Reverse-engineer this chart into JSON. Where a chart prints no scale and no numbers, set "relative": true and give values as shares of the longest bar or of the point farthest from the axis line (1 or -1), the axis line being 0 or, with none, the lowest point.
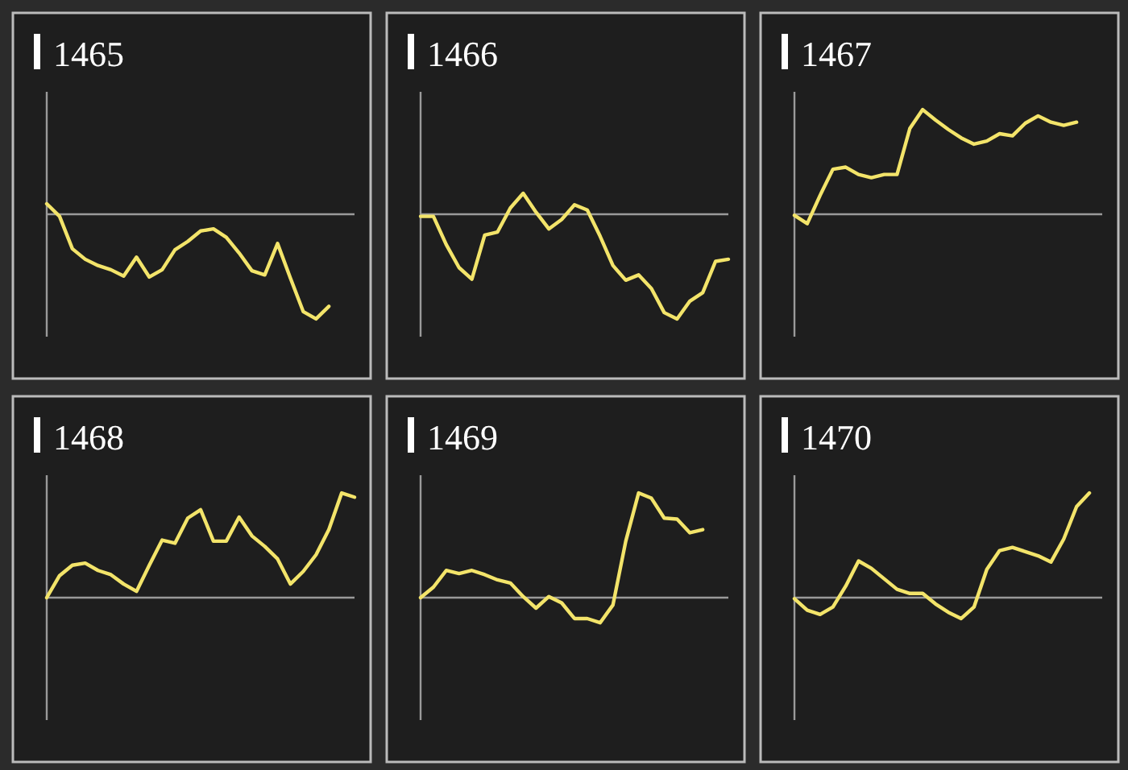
{
  "chart_data": [
    {
      "type": "line",
      "title": "1465",
      "relative": true,
      "categories": [
        null,
        null,
        null,
        null,
        null,
        null,
        null,
        null,
        null,
        null,
        null,
        null,
        null,
        null,
        null,
        null,
        null,
        null,
        null,
        null,
        null,
        null,
        null,
        null,
        null
      ],
      "series": [
        {
          "color": "#f3e46a",
          "values": [
            0.1,
            -0.02,
            -0.33,
            -0.43,
            -0.49,
            -0.53,
            -0.59,
            -0.41,
            -0.6,
            -0.53,
            -0.34,
            -0.26,
            -0.16,
            -0.14,
            -0.22,
            -0.37,
            -0.54,
            -0.58,
            -0.28,
            -0.61,
            -0.93,
            -1,
            -0.88,
            null,
            null
          ]
        }
      ]
    },
    {
      "type": "line",
      "title": "1466",
      "relative": true,
      "categories": [
        null,
        null,
        null,
        null,
        null,
        null,
        null,
        null,
        null,
        null,
        null,
        null,
        null,
        null,
        null,
        null,
        null,
        null,
        null,
        null,
        null,
        null,
        null,
        null,
        null
      ],
      "series": [
        {
          "color": "#f3e46a",
          "values": [
            -0.02,
            -0.02,
            -0.29,
            -0.51,
            -0.62,
            -0.2,
            -0.17,
            0.06,
            0.2,
            0.02,
            -0.14,
            -0.05,
            0.09,
            0.04,
            -0.21,
            -0.49,
            -0.63,
            -0.58,
            -0.71,
            -0.94,
            -1,
            -0.83,
            -0.75,
            -0.45,
            -0.43
          ]
        }
      ]
    },
    {
      "type": "line",
      "title": "1467",
      "relative": true,
      "categories": [
        null,
        null,
        null,
        null,
        null,
        null,
        null,
        null,
        null,
        null,
        null,
        null,
        null,
        null,
        null,
        null,
        null,
        null,
        null,
        null,
        null,
        null,
        null,
        null,
        null
      ],
      "series": [
        {
          "color": "#f3e46a",
          "values": [
            -0.01,
            -0.09,
            0.18,
            0.43,
            0.45,
            0.38,
            0.35,
            0.38,
            0.38,
            0.82,
            1,
            0.9,
            0.81,
            0.73,
            0.67,
            0.7,
            0.77,
            0.75,
            0.87,
            0.94,
            0.88,
            0.85,
            0.88,
            null,
            null
          ]
        }
      ]
    },
    {
      "type": "line",
      "title": "1468",
      "relative": true,
      "categories": [
        null,
        null,
        null,
        null,
        null,
        null,
        null,
        null,
        null,
        null,
        null,
        null,
        null,
        null,
        null,
        null,
        null,
        null,
        null,
        null,
        null,
        null,
        null,
        null,
        null
      ],
      "series": [
        {
          "color": "#f3e46a",
          "values": [
            0,
            0.21,
            0.31,
            0.33,
            0.26,
            0.22,
            0.13,
            0.06,
            0.31,
            0.55,
            0.52,
            0.76,
            0.84,
            0.54,
            0.54,
            0.77,
            0.59,
            0.49,
            0.37,
            0.13,
            0.25,
            0.41,
            0.65,
            1,
            0.96
          ]
        }
      ]
    },
    {
      "type": "line",
      "title": "1469",
      "relative": true,
      "categories": [
        null,
        null,
        null,
        null,
        null,
        null,
        null,
        null,
        null,
        null,
        null,
        null,
        null,
        null,
        null,
        null,
        null,
        null,
        null,
        null,
        null,
        null,
        null,
        null,
        null
      ],
      "series": [
        {
          "color": "#f3e46a",
          "values": [
            0,
            0.1,
            0.26,
            0.23,
            0.26,
            0.22,
            0.17,
            0.14,
            0.01,
            -0.1,
            0.01,
            -0.05,
            -0.2,
            -0.2,
            -0.24,
            -0.07,
            0.54,
            1,
            0.95,
            0.76,
            0.75,
            0.62,
            0.65,
            null,
            null
          ]
        }
      ]
    },
    {
      "type": "line",
      "title": "1470",
      "relative": true,
      "categories": [
        null,
        null,
        null,
        null,
        null,
        null,
        null,
        null,
        null,
        null,
        null,
        null,
        null,
        null,
        null,
        null,
        null,
        null,
        null,
        null,
        null,
        null,
        null,
        null,
        null
      ],
      "series": [
        {
          "color": "#f3e46a",
          "values": [
            -0.01,
            -0.12,
            -0.16,
            -0.09,
            0.11,
            0.35,
            0.28,
            0.18,
            0.08,
            0.04,
            0.04,
            -0.06,
            -0.14,
            -0.2,
            -0.09,
            0.27,
            0.45,
            0.48,
            0.44,
            0.4,
            0.34,
            0.56,
            0.87,
            1,
            null
          ]
        }
      ]
    }
  ]
}
